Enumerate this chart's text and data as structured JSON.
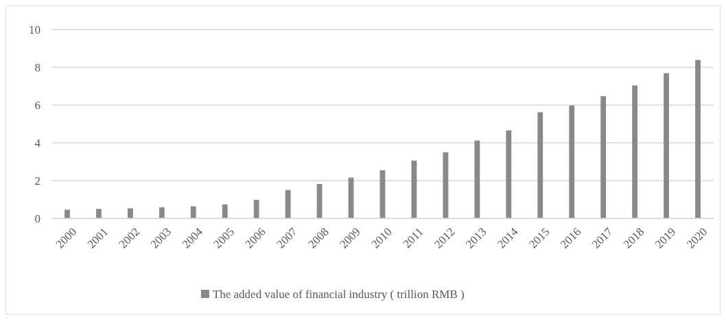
{
  "chart_data": {
    "type": "bar",
    "categories": [
      "2000",
      "2001",
      "2002",
      "2003",
      "2004",
      "2005",
      "2006",
      "2007",
      "2008",
      "2009",
      "2010",
      "2011",
      "2012",
      "2013",
      "2014",
      "2015",
      "2016",
      "2017",
      "2018",
      "2019",
      "2020"
    ],
    "series": [
      {
        "name": "The added value of financial industry ( trillion RMB )",
        "color": "#898989",
        "values": [
          0.46,
          0.5,
          0.53,
          0.59,
          0.64,
          0.74,
          0.98,
          1.5,
          1.82,
          2.16,
          2.55,
          3.06,
          3.5,
          4.12,
          4.66,
          5.62,
          5.98,
          6.47,
          7.04,
          7.69,
          8.39
        ]
      }
    ],
    "ylim": [
      0,
      10
    ],
    "yticks": [
      0,
      2,
      4,
      6,
      8,
      10
    ],
    "grid": "y",
    "legend": "bottom"
  }
}
